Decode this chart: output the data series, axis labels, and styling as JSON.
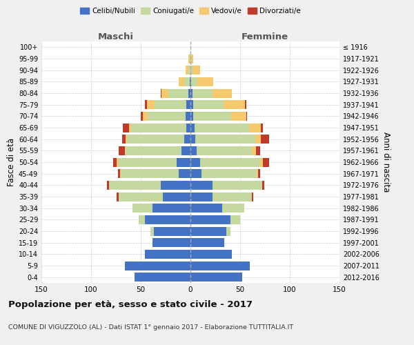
{
  "age_groups": [
    "0-4",
    "5-9",
    "10-14",
    "15-19",
    "20-24",
    "25-29",
    "30-34",
    "35-39",
    "40-44",
    "45-49",
    "50-54",
    "55-59",
    "60-64",
    "65-69",
    "70-74",
    "75-79",
    "80-84",
    "85-89",
    "90-94",
    "95-99",
    "100+"
  ],
  "birth_years": [
    "2012-2016",
    "2007-2011",
    "2002-2006",
    "1997-2001",
    "1992-1996",
    "1987-1991",
    "1982-1986",
    "1977-1981",
    "1972-1976",
    "1967-1971",
    "1962-1966",
    "1957-1961",
    "1952-1956",
    "1947-1951",
    "1942-1946",
    "1937-1941",
    "1932-1936",
    "1927-1931",
    "1922-1926",
    "1917-1921",
    "≤ 1916"
  ],
  "males": {
    "celibi": [
      56,
      66,
      46,
      38,
      37,
      46,
      38,
      28,
      30,
      12,
      14,
      9,
      6,
      4,
      5,
      4,
      2,
      1,
      0,
      0,
      0
    ],
    "coniugati": [
      0,
      0,
      0,
      0,
      3,
      6,
      20,
      44,
      52,
      58,
      58,
      56,
      58,
      56,
      38,
      32,
      20,
      5,
      2,
      1,
      0
    ],
    "vedovi": [
      0,
      0,
      0,
      0,
      0,
      0,
      0,
      0,
      0,
      1,
      2,
      1,
      1,
      2,
      5,
      8,
      7,
      6,
      3,
      1,
      0
    ],
    "divorziati": [
      0,
      0,
      0,
      0,
      0,
      0,
      0,
      2,
      2,
      2,
      4,
      6,
      4,
      6,
      2,
      2,
      1,
      0,
      0,
      0,
      0
    ]
  },
  "females": {
    "nubili": [
      52,
      60,
      42,
      34,
      36,
      40,
      32,
      22,
      22,
      11,
      10,
      6,
      5,
      4,
      3,
      3,
      2,
      1,
      0,
      0,
      0
    ],
    "coniugate": [
      0,
      0,
      0,
      0,
      4,
      10,
      22,
      40,
      50,
      56,
      60,
      56,
      60,
      55,
      38,
      30,
      20,
      6,
      2,
      1,
      0
    ],
    "vedove": [
      0,
      0,
      0,
      0,
      0,
      0,
      0,
      0,
      0,
      1,
      3,
      4,
      6,
      12,
      15,
      22,
      20,
      16,
      8,
      2,
      0
    ],
    "divorziate": [
      0,
      0,
      0,
      0,
      0,
      0,
      0,
      1,
      2,
      2,
      6,
      4,
      8,
      2,
      1,
      1,
      0,
      0,
      0,
      0,
      0
    ]
  },
  "color_celibi": "#4472c4",
  "color_coniugati": "#c5d8a0",
  "color_vedovi": "#f5c96e",
  "color_divorziati": "#c0392b",
  "xlim": 150,
  "title": "Popolazione per età, sesso e stato civile - 2017",
  "subtitle": "COMUNE DI VIGUZZOLO (AL) - Dati ISTAT 1° gennaio 2017 - Elaborazione TUTTITALIA.IT",
  "ylabel_left": "Fasce di età",
  "ylabel_right": "Anni di nascita",
  "xlabel_left": "Maschi",
  "xlabel_right": "Femmine",
  "bg_color": "#f0f0f0",
  "plot_bg": "#ffffff"
}
